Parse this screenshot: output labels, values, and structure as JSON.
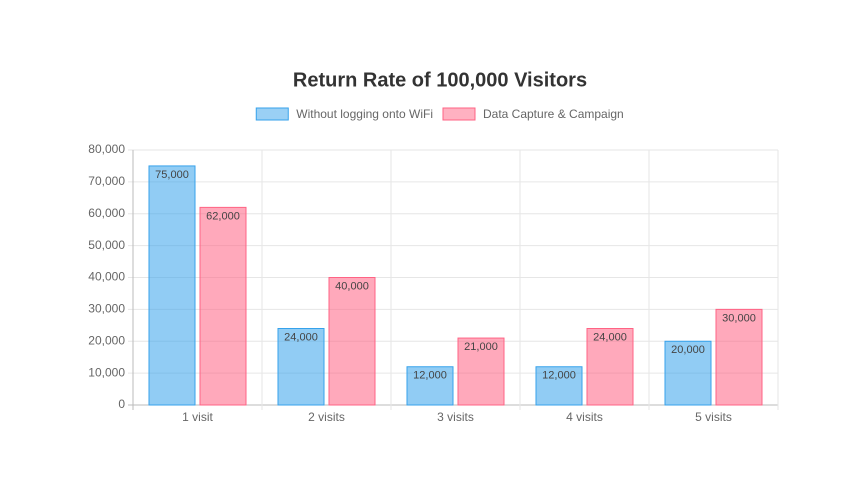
{
  "chart_data": {
    "type": "bar",
    "title": "Return Rate of 100,000 Visitors",
    "categories": [
      "1 visit",
      "2 visits",
      "3 visits",
      "4 visits",
      "5 visits"
    ],
    "series": [
      {
        "name": "Without logging onto WiFi",
        "color": "#36a2eb",
        "values": [
          75000,
          24000,
          12000,
          12000,
          20000
        ],
        "value_labels": [
          "75,000",
          "24,000",
          "12,000",
          "12,000",
          "20,000"
        ]
      },
      {
        "name": "Data Capture & Campaign",
        "color": "#ff6384",
        "values": [
          62000,
          40000,
          21000,
          24000,
          30000
        ],
        "value_labels": [
          "62,000",
          "40,000",
          "21,000",
          "24,000",
          "30,000"
        ]
      }
    ],
    "ylim": [
      0,
      80000
    ],
    "yticks": [
      0,
      {
        "value": 10000,
        "label": "10,000"
      },
      {
        "value": 20000,
        "label": "20,000"
      },
      {
        "value": 30000,
        "label": "30,000"
      },
      {
        "value": 40000,
        "label": "40,000"
      },
      {
        "value": 50000,
        "label": "50,000"
      },
      {
        "value": 60000,
        "label": "60,000"
      },
      {
        "value": 70000,
        "label": "70,000"
      },
      {
        "value": 80000,
        "label": "80,000"
      }
    ],
    "grid": true,
    "legend": "top"
  }
}
